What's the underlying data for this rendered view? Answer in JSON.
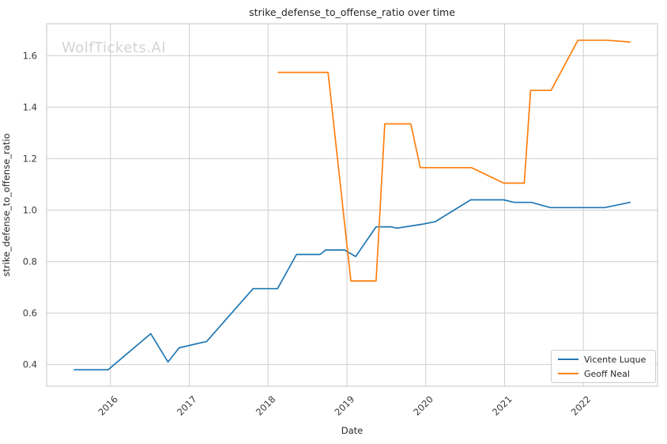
{
  "figure": {
    "watermark": "WolfTickets.AI",
    "background": "#ffffff",
    "grid_color": "#cfcfcf",
    "text_color": "#262626"
  },
  "chart_data": {
    "type": "line",
    "title": "strike_defense_to_offense_ratio over time",
    "xlabel": "Date",
    "ylabel": "strike_defense_to_offense_ratio",
    "xlim": [
      2015.19,
      2022.94
    ],
    "ylim": [
      0.316,
      1.724
    ],
    "xticks": [
      2016,
      2017,
      2018,
      2019,
      2020,
      2021,
      2022
    ],
    "yticks": [
      0.4,
      0.6,
      0.8,
      1.0,
      1.2,
      1.4,
      1.6
    ],
    "grid": true,
    "legend_position": "lower right",
    "series": [
      {
        "name": "Vicente Luque",
        "color": "#1f77b4",
        "points": [
          [
            2015.54,
            0.38
          ],
          [
            2015.97,
            0.38
          ],
          [
            2016.51,
            0.52
          ],
          [
            2016.73,
            0.41
          ],
          [
            2016.87,
            0.465
          ],
          [
            2017.22,
            0.49
          ],
          [
            2017.81,
            0.695
          ],
          [
            2018.12,
            0.695
          ],
          [
            2018.36,
            0.828
          ],
          [
            2018.66,
            0.828
          ],
          [
            2018.73,
            0.845
          ],
          [
            2018.97,
            0.845
          ],
          [
            2019.11,
            0.82
          ],
          [
            2019.37,
            0.935
          ],
          [
            2019.56,
            0.935
          ],
          [
            2019.63,
            0.93
          ],
          [
            2019.95,
            0.945
          ],
          [
            2020.12,
            0.955
          ],
          [
            2020.57,
            1.04
          ],
          [
            2020.99,
            1.04
          ],
          [
            2021.12,
            1.03
          ],
          [
            2021.34,
            1.03
          ],
          [
            2021.58,
            1.01
          ],
          [
            2022.27,
            1.01
          ],
          [
            2022.59,
            1.03
          ]
        ]
      },
      {
        "name": "Geoff Neal",
        "color": "#ff7f0e",
        "points": [
          [
            2018.13,
            1.535
          ],
          [
            2018.76,
            1.535
          ],
          [
            2019.05,
            0.725
          ],
          [
            2019.37,
            0.725
          ],
          [
            2019.48,
            1.335
          ],
          [
            2019.81,
            1.335
          ],
          [
            2019.93,
            1.165
          ],
          [
            2020.58,
            1.165
          ],
          [
            2020.99,
            1.105
          ],
          [
            2021.25,
            1.105
          ],
          [
            2021.33,
            1.465
          ],
          [
            2021.59,
            1.465
          ],
          [
            2021.93,
            1.66
          ],
          [
            2022.3,
            1.66
          ],
          [
            2022.59,
            1.653
          ]
        ]
      }
    ]
  }
}
